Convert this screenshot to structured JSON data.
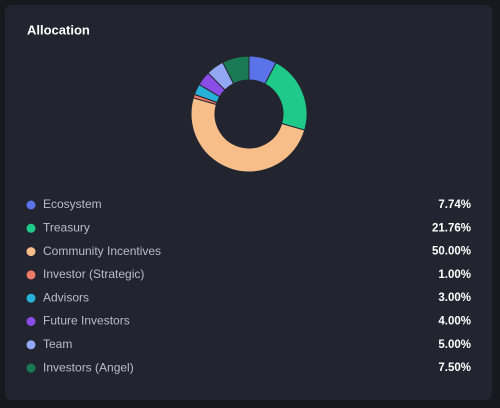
{
  "chart_data": {
    "type": "pie",
    "title": "Allocation",
    "categories": [
      "Ecosystem",
      "Treasury",
      "Community Incentives",
      "Investor (Strategic)",
      "Advisors",
      "Future Investors",
      "Team",
      "Investors (Angel)"
    ],
    "values": [
      7.74,
      21.76,
      50.0,
      1.0,
      3.0,
      4.0,
      5.0,
      7.5
    ],
    "value_labels": [
      "7.74%",
      "21.76%",
      "50.00%",
      "1.00%",
      "3.00%",
      "4.00%",
      "5.00%",
      "7.50%"
    ],
    "colors": [
      "#5b73e8",
      "#1fc98a",
      "#f7be8a",
      "#f07a6a",
      "#27b1d8",
      "#8a4de8",
      "#93a8f4",
      "#1a7a55"
    ]
  }
}
